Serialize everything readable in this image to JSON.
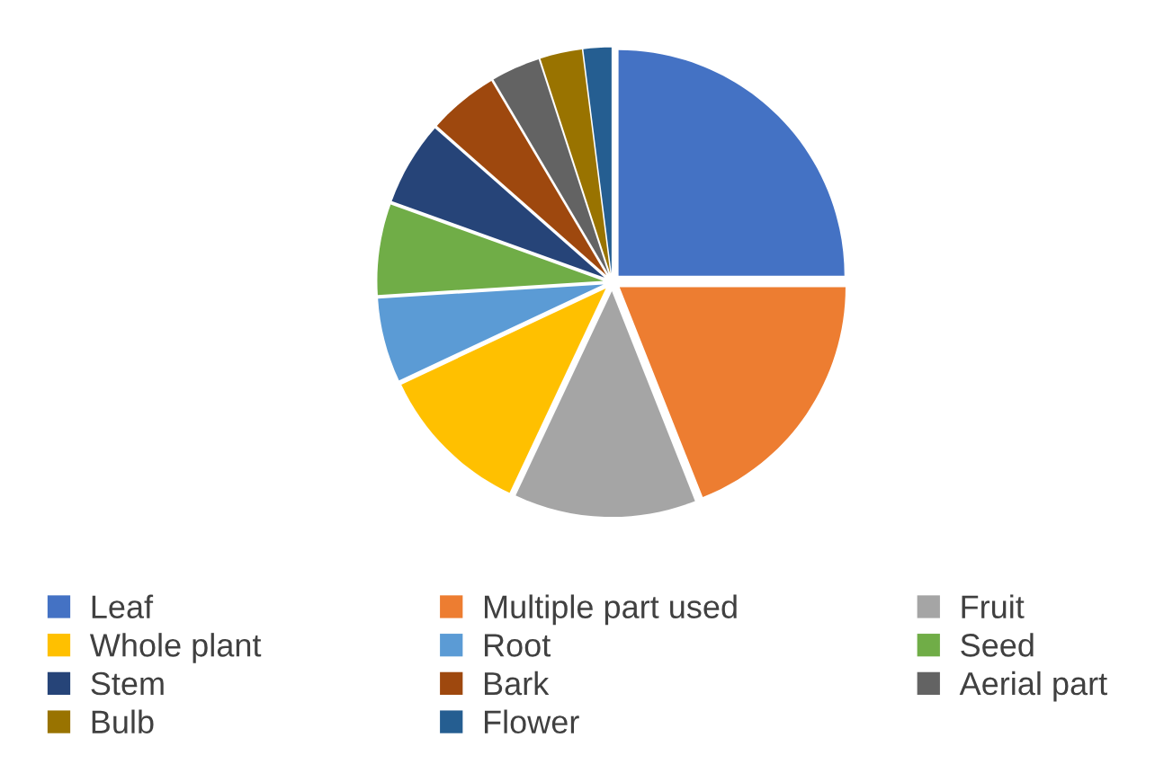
{
  "chart_data": {
    "type": "pie",
    "categories": [
      "Leaf",
      "Multiple part used",
      "Fruit",
      "Whole plant",
      "Root",
      "Seed",
      "Stem",
      "Bark",
      "Aerial part",
      "Bulb",
      "Flower"
    ],
    "values": [
      25,
      19,
      13,
      11,
      6,
      6.5,
      6,
      5,
      3.5,
      3,
      2
    ],
    "colors": [
      "#4472c4",
      "#ed7d31",
      "#a5a5a5",
      "#ffc000",
      "#5b9bd5",
      "#70ad47",
      "#264478",
      "#9e480e",
      "#636363",
      "#997300",
      "#255e91"
    ],
    "legend": "bottom"
  }
}
